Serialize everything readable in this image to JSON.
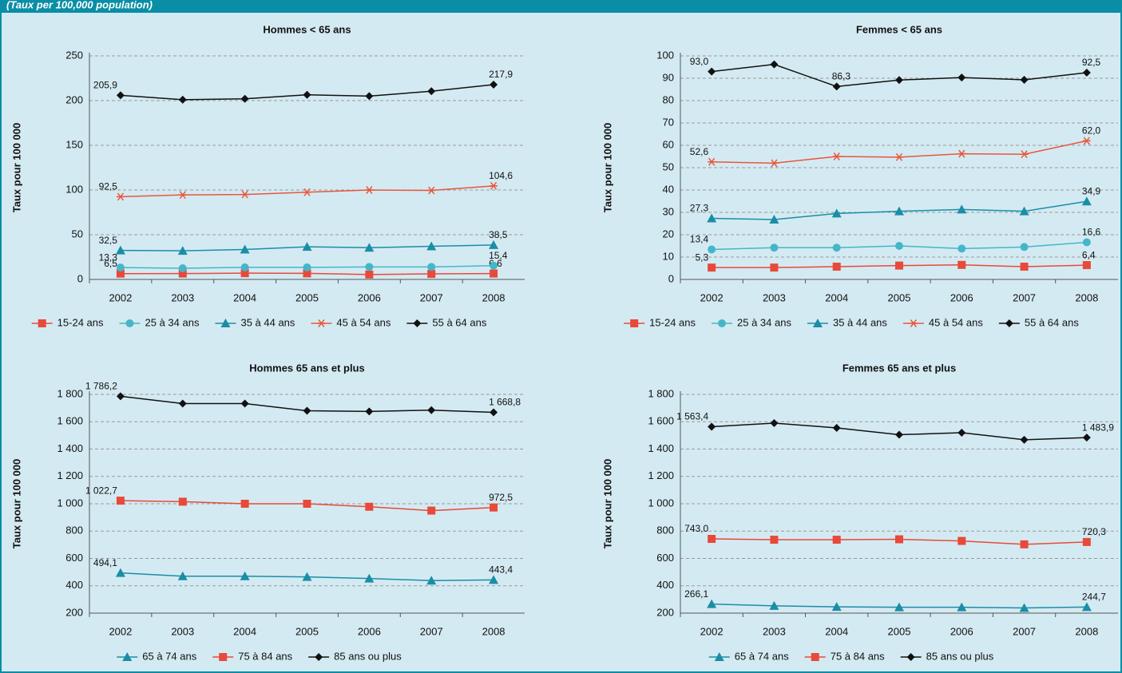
{
  "header": "(Taux per 100,000 population)",
  "chart_data": [
    {
      "type": "line",
      "title": "Hommes < 65 ans",
      "y_label": "Taux pour 100 000",
      "categories": [
        "2002",
        "2003",
        "2004",
        "2005",
        "2006",
        "2007",
        "2008"
      ],
      "ylim": [
        0,
        250
      ],
      "yticks": [
        0,
        50,
        100,
        150,
        200,
        250
      ],
      "grid": true,
      "legend": "bottom",
      "series": [
        {
          "name": "15-24 ans",
          "color": "#e8493a",
          "marker": "square",
          "values": [
            6.5,
            6.6,
            7.0,
            6.8,
            5.5,
            6.2,
            6.6
          ],
          "value_labels": [
            "6,5",
            null,
            null,
            null,
            null,
            null,
            "6,6"
          ]
        },
        {
          "name": "25 à 34 ans",
          "color": "#45b6c9",
          "marker": "circle",
          "values": [
            13.3,
            12.5,
            13.5,
            13.5,
            14.0,
            14.0,
            15.4
          ],
          "value_labels": [
            "13,3",
            null,
            null,
            null,
            null,
            null,
            "15,4"
          ]
        },
        {
          "name": "35 à 44 ans",
          "color": "#1a8ea6",
          "marker": "triangle",
          "values": [
            32.5,
            32.0,
            33.5,
            36.5,
            35.5,
            37.0,
            38.5
          ],
          "value_labels": [
            "32,5",
            null,
            null,
            null,
            null,
            null,
            "38,5"
          ]
        },
        {
          "name": "45 à 54 ans",
          "color": "#e8573c",
          "marker": "star",
          "values": [
            92.5,
            94.5,
            95.0,
            97.5,
            100.0,
            99.5,
            104.6
          ],
          "value_labels": [
            "92,5",
            null,
            null,
            null,
            null,
            null,
            "104,6"
          ]
        },
        {
          "name": "55 à 64 ans",
          "color": "#111111",
          "marker": "diamond",
          "values": [
            205.9,
            201.0,
            202.0,
            206.5,
            205.0,
            210.5,
            217.9
          ],
          "value_labels": [
            "205,9",
            null,
            null,
            null,
            null,
            null,
            "217,9"
          ]
        }
      ]
    },
    {
      "type": "line",
      "title": "Femmes  < 65 ans",
      "y_label": "Taux pour 100 000",
      "categories": [
        "2002",
        "2003",
        "2004",
        "2005",
        "2006",
        "2007",
        "2008"
      ],
      "ylim": [
        0,
        100
      ],
      "yticks": [
        0,
        10,
        20,
        30,
        40,
        50,
        60,
        70,
        80,
        90,
        100
      ],
      "grid": true,
      "legend": "bottom",
      "series": [
        {
          "name": "15-24 ans",
          "color": "#e8493a",
          "marker": "square",
          "values": [
            5.3,
            5.3,
            5.7,
            6.2,
            6.5,
            5.7,
            6.4
          ],
          "value_labels": [
            "5,3",
            null,
            null,
            null,
            null,
            null,
            "6,4"
          ]
        },
        {
          "name": "25 à 34 ans",
          "color": "#45b6c9",
          "marker": "circle",
          "values": [
            13.4,
            14.2,
            14.2,
            15.0,
            13.8,
            14.5,
            16.6
          ],
          "value_labels": [
            "13,4",
            null,
            null,
            null,
            null,
            null,
            "16,6"
          ]
        },
        {
          "name": "35 à 44 ans",
          "color": "#1a8ea6",
          "marker": "triangle",
          "values": [
            27.3,
            26.8,
            29.5,
            30.5,
            31.3,
            30.5,
            34.9
          ],
          "value_labels": [
            "27,3",
            null,
            null,
            null,
            null,
            null,
            "34,9"
          ]
        },
        {
          "name": "45 à 54 ans",
          "color": "#e8573c",
          "marker": "star",
          "values": [
            52.6,
            52.0,
            55.0,
            54.7,
            56.2,
            56.0,
            62.0
          ],
          "value_labels": [
            "52,6",
            null,
            null,
            null,
            null,
            null,
            "62,0"
          ]
        },
        {
          "name": "55 à 64 ans",
          "color": "#111111",
          "marker": "diamond",
          "values": [
            93.0,
            96.2,
            86.3,
            89.2,
            90.3,
            89.3,
            92.5
          ],
          "value_labels": [
            "93,0",
            null,
            "86,3",
            null,
            null,
            null,
            "92,5"
          ]
        }
      ]
    },
    {
      "type": "line",
      "title": "Hommes 65 ans et plus",
      "y_label": "Taux pour 100 000",
      "categories": [
        "2002",
        "2003",
        "2004",
        "2005",
        "2006",
        "2007",
        "2008"
      ],
      "ylim": [
        200,
        1800
      ],
      "yticks": [
        200,
        400,
        600,
        800,
        {
          "value": 1000,
          "label": "1 000"
        },
        {
          "value": 1200,
          "label": "1 200"
        },
        {
          "value": 1400,
          "label": "1 400"
        },
        {
          "value": 1600,
          "label": "1 600"
        },
        {
          "value": 1800,
          "label": "1 800"
        }
      ],
      "grid": true,
      "legend": "bottom",
      "series": [
        {
          "name": "65 à 74 ans",
          "color": "#1a8ea6",
          "marker": "triangle",
          "values": [
            494.1,
            470,
            470,
            465,
            453,
            438,
            443.4
          ],
          "value_labels": [
            "494,1",
            null,
            null,
            null,
            null,
            null,
            "443,4"
          ]
        },
        {
          "name": "75 à 84 ans",
          "color": "#e8493a",
          "marker": "square",
          "values": [
            1022.7,
            1015,
            1000,
            1000,
            978,
            950,
            972.5
          ],
          "value_labels": [
            "1 022,7",
            null,
            null,
            null,
            null,
            null,
            "972,5"
          ]
        },
        {
          "name": "85 ans ou plus",
          "color": "#111111",
          "marker": "diamond",
          "values": [
            1786.2,
            1733,
            1733,
            1680,
            1675,
            1685,
            1668.8
          ],
          "value_labels": [
            "1 786,2",
            null,
            null,
            null,
            null,
            null,
            "1 668,8"
          ]
        }
      ]
    },
    {
      "type": "line",
      "title": "Femmes 65 ans et plus",
      "y_label": "Taux pour 100 000",
      "categories": [
        "2002",
        "2003",
        "2004",
        "2005",
        "2006",
        "2007",
        "2008"
      ],
      "ylim": [
        200,
        1800
      ],
      "yticks": [
        200,
        400,
        600,
        800,
        {
          "value": 1000,
          "label": "1 000"
        },
        {
          "value": 1200,
          "label": "1 200"
        },
        {
          "value": 1400,
          "label": "1 400"
        },
        {
          "value": 1600,
          "label": "1 600"
        },
        {
          "value": 1800,
          "label": "1 800"
        }
      ],
      "grid": true,
      "legend": "bottom",
      "series": [
        {
          "name": "65 à 74 ans",
          "color": "#1a8ea6",
          "marker": "triangle",
          "values": [
            266.1,
            253,
            246,
            243,
            243,
            238,
            244.7
          ],
          "value_labels": [
            "266,1",
            null,
            null,
            null,
            null,
            null,
            "244,7"
          ]
        },
        {
          "name": "75 à 84 ans",
          "color": "#e8493a",
          "marker": "square",
          "values": [
            743.0,
            737,
            737,
            740,
            728,
            703,
            720.3
          ],
          "value_labels": [
            "743,0",
            null,
            null,
            null,
            null,
            null,
            "720,3"
          ]
        },
        {
          "name": "85 ans ou plus",
          "color": "#111111",
          "marker": "diamond",
          "values": [
            1563.4,
            1590,
            1555,
            1505,
            1520,
            1468,
            1483.9
          ],
          "value_labels": [
            "1 563,4",
            null,
            null,
            null,
            null,
            null,
            "1 483,9"
          ]
        }
      ]
    }
  ]
}
